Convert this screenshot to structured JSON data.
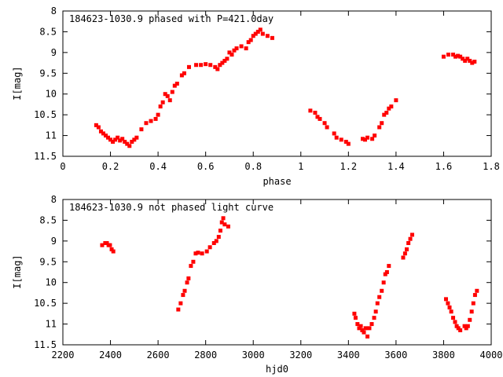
{
  "chart_data": [
    {
      "type": "scatter",
      "title": "184623-1030.9 phased with P=421.0day",
      "xlabel": "phase",
      "ylabel": "I[mag]",
      "xlim": [
        0,
        1.8
      ],
      "ylim": [
        8,
        11.5
      ],
      "y_inverted": true,
      "xticks": [
        "0",
        "0.2",
        "0.4",
        "0.6",
        "0.8",
        "1",
        "1.2",
        "1.4",
        "1.6",
        "1.8"
      ],
      "yticks": [
        "8",
        "8.5",
        "9",
        "9.5",
        "10",
        "10.5",
        "11",
        "11.5"
      ],
      "grid": false,
      "marker_color": "#ff0000",
      "series": [
        {
          "x": [
            0.14,
            0.15,
            0.16,
            0.17,
            0.18,
            0.19,
            0.2,
            0.21,
            0.22,
            0.23,
            0.24,
            0.25,
            0.26,
            0.27,
            0.28,
            0.29,
            0.3,
            0.31,
            0.33,
            0.35,
            0.37,
            0.39,
            0.4,
            0.41,
            0.42,
            0.43,
            0.44,
            0.45,
            0.46,
            0.47,
            0.48,
            0.5,
            0.51,
            0.53,
            0.56,
            0.58,
            0.6,
            0.62,
            0.64,
            0.65,
            0.66,
            0.67,
            0.68,
            0.69,
            0.7,
            0.71,
            0.72,
            0.73,
            0.75,
            0.77,
            0.78,
            0.79,
            0.8,
            0.81,
            0.82,
            0.83,
            0.84,
            0.86,
            0.88,
            1.04,
            1.06,
            1.07,
            1.08,
            1.1,
            1.11,
            1.14,
            1.15,
            1.17,
            1.19,
            1.2,
            1.26,
            1.27,
            1.28,
            1.3,
            1.31,
            1.33,
            1.34,
            1.35,
            1.36,
            1.37,
            1.38,
            1.4,
            1.6,
            1.62,
            1.64,
            1.65,
            1.66,
            1.67,
            1.68,
            1.69,
            1.7,
            1.71,
            1.72,
            1.73
          ],
          "y": [
            10.75,
            10.8,
            10.9,
            10.95,
            11.0,
            11.05,
            11.1,
            11.15,
            11.1,
            11.05,
            11.12,
            11.08,
            11.15,
            11.2,
            11.25,
            11.15,
            11.1,
            11.05,
            10.85,
            10.7,
            10.65,
            10.6,
            10.5,
            10.3,
            10.2,
            10.0,
            10.05,
            10.15,
            9.95,
            9.8,
            9.75,
            9.55,
            9.5,
            9.35,
            9.3,
            9.3,
            9.28,
            9.3,
            9.35,
            9.4,
            9.3,
            9.25,
            9.2,
            9.15,
            9.0,
            9.05,
            8.95,
            8.9,
            8.85,
            8.9,
            8.75,
            8.7,
            8.6,
            8.55,
            8.5,
            8.45,
            8.55,
            8.6,
            8.65,
            10.4,
            10.45,
            10.55,
            10.6,
            10.7,
            10.8,
            10.95,
            11.05,
            11.1,
            11.15,
            11.2,
            11.08,
            11.1,
            11.05,
            11.08,
            11.0,
            10.8,
            10.7,
            10.5,
            10.45,
            10.35,
            10.3,
            10.15,
            9.1,
            9.05,
            9.05,
            9.1,
            9.08,
            9.1,
            9.15,
            9.2,
            9.15,
            9.2,
            9.25,
            9.22
          ]
        }
      ]
    },
    {
      "type": "scatter",
      "title": "184623-1030.9 not phased light curve",
      "xlabel": "hjd0",
      "ylabel": "I[mag]",
      "xlim": [
        2200,
        4000
      ],
      "ylim": [
        8,
        11.5
      ],
      "y_inverted": true,
      "xticks": [
        "2200",
        "2400",
        "2600",
        "2800",
        "3000",
        "3200",
        "3400",
        "3600",
        "3800",
        "4000"
      ],
      "yticks": [
        "8",
        "8.5",
        "9",
        "9.5",
        "10",
        "10.5",
        "11",
        "11.5"
      ],
      "grid": false,
      "marker_color": "#ff0000",
      "series": [
        {
          "x": [
            2365,
            2378,
            2385,
            2392,
            2398,
            2405,
            2412,
            2685,
            2695,
            2705,
            2712,
            2722,
            2728,
            2738,
            2748,
            2758,
            2768,
            2785,
            2805,
            2818,
            2835,
            2845,
            2855,
            2862,
            2868,
            2874,
            2880,
            2895,
            3425,
            3430,
            3438,
            3445,
            3452,
            3458,
            3465,
            3472,
            3480,
            3488,
            3498,
            3508,
            3515,
            3522,
            3530,
            3540,
            3548,
            3555,
            3562,
            3570,
            3630,
            3638,
            3645,
            3652,
            3660,
            3668,
            3810,
            3818,
            3825,
            3832,
            3840,
            3848,
            3855,
            3862,
            3870,
            3888,
            3895,
            3902,
            3910,
            3918,
            3925,
            3932,
            3940
          ],
          "y": [
            9.1,
            9.05,
            9.05,
            9.1,
            9.1,
            9.2,
            9.25,
            10.65,
            10.5,
            10.3,
            10.2,
            10.0,
            9.9,
            9.6,
            9.5,
            9.3,
            9.28,
            9.3,
            9.25,
            9.15,
            9.05,
            9.0,
            8.9,
            8.75,
            8.55,
            8.45,
            8.6,
            8.65,
            10.75,
            10.85,
            11.0,
            11.1,
            11.05,
            11.15,
            11.2,
            11.1,
            11.3,
            11.1,
            11.0,
            10.85,
            10.7,
            10.5,
            10.35,
            10.2,
            10.0,
            9.8,
            9.75,
            9.6,
            9.4,
            9.3,
            9.2,
            9.05,
            8.95,
            8.85,
            10.4,
            10.5,
            10.6,
            10.7,
            10.85,
            10.95,
            11.05,
            11.1,
            11.15,
            11.05,
            11.1,
            11.05,
            10.9,
            10.7,
            10.5,
            10.3,
            10.2
          ]
        }
      ]
    }
  ]
}
